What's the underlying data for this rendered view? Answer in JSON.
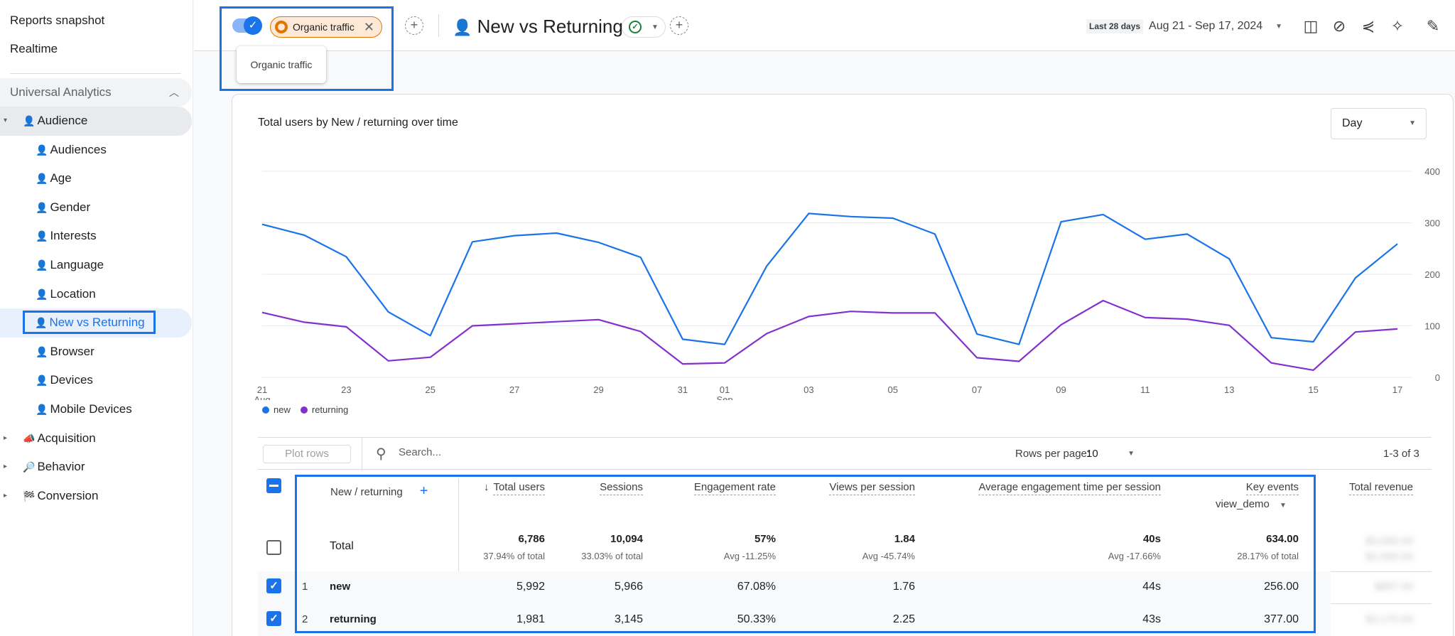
{
  "sidebar": {
    "top_items": [
      "Reports snapshot",
      "Realtime"
    ],
    "section": "Universal Analytics",
    "items": [
      {
        "label": "Audience",
        "icon": "👤",
        "level": 1,
        "arrow": "▾"
      },
      {
        "label": "Audiences",
        "icon": "👤",
        "level": 2
      },
      {
        "label": "Age",
        "icon": "👤",
        "level": 2
      },
      {
        "label": "Gender",
        "icon": "👤",
        "level": 2
      },
      {
        "label": "Interests",
        "icon": "👤",
        "level": 2
      },
      {
        "label": "Language",
        "icon": "👤",
        "level": 2
      },
      {
        "label": "Location",
        "icon": "👤",
        "level": 2
      },
      {
        "label": "New vs Returning",
        "icon": "👤",
        "level": 2,
        "active": true
      },
      {
        "label": "Browser",
        "icon": "👤",
        "level": 2
      },
      {
        "label": "Devices",
        "icon": "👤",
        "level": 2
      },
      {
        "label": "Mobile Devices",
        "icon": "👤",
        "level": 2
      },
      {
        "label": "Acquisition",
        "icon": "📣",
        "level": 1,
        "arrow": "▸"
      },
      {
        "label": "Behavior",
        "icon": "🔎",
        "level": 1,
        "arrow": "▸"
      },
      {
        "label": "Conversion",
        "icon": "🏁",
        "level": 1,
        "arrow": "▸"
      }
    ]
  },
  "topbar": {
    "filter_chip": "Organic traffic",
    "filter_popup": "Organic traffic",
    "page_title": "New vs Returning",
    "page_icon": "👤",
    "date_tag": "Last 28 days",
    "date_range": "Aug 21 - Sep 17, 2024",
    "icons": [
      "compare-icon",
      "insights-icon",
      "share-icon",
      "sparkle-icon",
      "edit-icon"
    ]
  },
  "card": {
    "chart_title": "Total users by New / returning over time",
    "granularity": "Day"
  },
  "chart_data": {
    "type": "line",
    "title": "Total users by New / returning over time",
    "x": [
      "Aug 21",
      "Aug 22",
      "Aug 23",
      "Aug 24",
      "Aug 25",
      "Aug 26",
      "Aug 27",
      "Aug 28",
      "Aug 29",
      "Aug 30",
      "Aug 31",
      "Sep 01",
      "Sep 02",
      "Sep 03",
      "Sep 04",
      "Sep 05",
      "Sep 06",
      "Sep 07",
      "Sep 08",
      "Sep 09",
      "Sep 10",
      "Sep 11",
      "Sep 12",
      "Sep 13",
      "Sep 14",
      "Sep 15",
      "Sep 16",
      "Sep 17"
    ],
    "x_tick_labels": [
      "21",
      "23",
      "25",
      "27",
      "29",
      "31",
      "01",
      "03",
      "05",
      "07",
      "09",
      "11",
      "13",
      "15",
      "17"
    ],
    "x_tick_sublabels": {
      "21": "Aug",
      "01": "Sep"
    },
    "y_ticks": [
      0,
      100,
      200,
      300,
      400
    ],
    "ylim": [
      0,
      400
    ],
    "y_axis_position": "right",
    "grid": true,
    "legend_position": "bottom-left",
    "series": [
      {
        "name": "new",
        "color": "#1a73e8",
        "values": [
          297,
          276,
          234,
          127,
          81,
          263,
          275,
          280,
          262,
          233,
          74,
          64,
          216,
          318,
          312,
          309,
          278,
          84,
          64,
          302,
          316,
          268,
          278,
          230,
          77,
          69,
          193,
          259
        ]
      },
      {
        "name": "returning",
        "color": "#8430ce",
        "values": [
          126,
          107,
          98,
          32,
          39,
          100,
          104,
          108,
          112,
          89,
          26,
          28,
          85,
          118,
          128,
          125,
          125,
          38,
          31,
          102,
          149,
          116,
          113,
          101,
          28,
          14,
          88,
          94
        ]
      }
    ]
  },
  "table": {
    "toolbar": {
      "plot_rows": "Plot rows",
      "search_placeholder": "Search...",
      "rows_per_page_label": "Rows per page:",
      "rows_per_page": "10",
      "pager": "1-3 of 3"
    },
    "dimension_header": "New / returning",
    "metric_headers": [
      "Total users",
      "Sessions",
      "Engagement rate",
      "Views per session",
      "Average engagement time per session",
      "Key events",
      "Total revenue"
    ],
    "key_events_filter": "view_demo",
    "total_label": "Total",
    "totals": [
      "6,786",
      "10,094",
      "57%",
      "1.84",
      "40s",
      "634.00"
    ],
    "totals_sub": [
      "37.94% of total",
      "33.03% of total",
      "Avg -11.25%",
      "Avg -45.74%",
      "Avg -17.66%",
      "28.17% of total"
    ],
    "rows": [
      {
        "index": "1",
        "label": "new",
        "values": [
          "5,992",
          "5,966",
          "67.08%",
          "1.76",
          "44s",
          "256.00"
        ]
      },
      {
        "index": "2",
        "label": "returning",
        "values": [
          "1,981",
          "3,145",
          "50.33%",
          "2.25",
          "43s",
          "377.00"
        ]
      }
    ],
    "revenue_blurred": [
      "$3,000.00",
      "$2,000.00",
      "$867.00",
      "$2,170.00"
    ]
  }
}
